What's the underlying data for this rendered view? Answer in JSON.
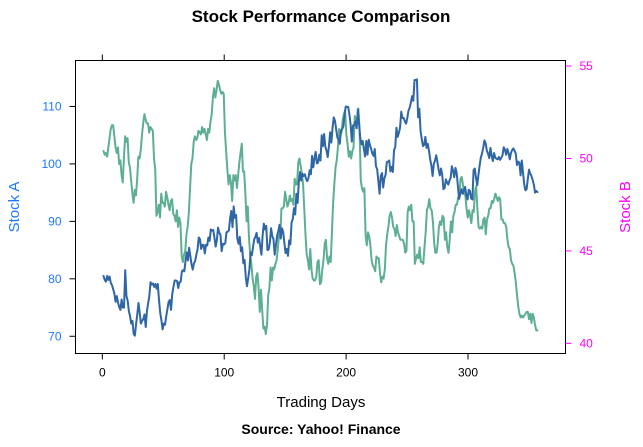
{
  "chart_data": {
    "type": "line",
    "title": "Stock Performance Comparison",
    "xlabel": "Trading Days",
    "caption": "Source: Yahoo! Finance",
    "x_range": [
      1,
      357
    ],
    "xlim": [
      -22,
      380
    ],
    "x_ticks": [
      0,
      100,
      200,
      300
    ],
    "grid": false,
    "colors": {
      "axis": "#000000",
      "left_axis": "#1E78FF",
      "right_axis": "#FF00FF"
    },
    "series": [
      {
        "ylabel": "Stock A",
        "axis": "left",
        "color": "#2E66A6",
        "ylim": [
          67,
          118
        ],
        "y_ticks": [
          70,
          80,
          90,
          100,
          110
        ],
        "values": [
          80.5,
          79.8,
          79.5,
          80.5,
          79.8,
          80.4,
          79.3,
          78.9,
          78.2,
          77.4,
          76.0,
          77.0,
          75.9,
          75.1,
          74.6,
          76.4,
          75.0,
          75.0,
          81.5,
          77.0,
          76.2,
          74.4,
          73.5,
          72.2,
          72.7,
          70.4,
          70.1,
          72.1,
          73.8,
          75.8,
          74.1,
          72.2,
          72.7,
          73.0,
          73.8,
          71.6,
          74.4,
          75.7,
          77.0,
          79.4,
          79.0,
          79.2,
          78.6,
          79.1,
          78.3,
          79.1,
          76.4,
          74.1,
          72.8,
          71.2,
          72.2,
          72.0,
          73.5,
          74.7,
          76.0,
          76.3,
          74.6,
          77.3,
          78.6,
          79.7,
          79.7,
          79.6,
          78.4,
          79.4,
          79.5,
          81.3,
          81.5,
          81.3,
          83.1,
          84.6,
          83.2,
          85.4,
          84.0,
          82.5,
          81.6,
          82.7,
          83.1,
          84.2,
          85.1,
          87.2,
          86.9,
          85.2,
          85.9,
          85.9,
          84.4,
          85.9,
          85.8,
          87.2,
          86.6,
          88.6,
          88.4,
          88.5,
          87.2,
          85.6,
          86.7,
          88.9,
          88.0,
          87.7,
          84.8,
          86.1,
          86.0,
          86.2,
          88.1,
          88.2,
          88.4,
          90.5,
          91.8,
          89.0,
          92.6,
          90.6,
          91.1,
          87.0,
          86.1,
          87.3,
          84.8,
          85.5,
          82.7,
          83.3,
          80.3,
          78.7,
          80.1,
          81.6,
          84.6,
          84.1,
          85.5,
          86.9,
          87.3,
          88.0,
          86.3,
          87.1,
          85.6,
          84.2,
          87.6,
          89.6,
          88.6,
          89.2,
          85.0,
          85.1,
          86.3,
          88.8,
          87.4,
          86.9,
          84.2,
          85.8,
          87.5,
          88.3,
          89.4,
          87.0,
          88.8,
          88.2,
          86.3,
          84.5,
          85.2,
          84.0,
          86.7,
          86.0,
          89.8,
          90.4,
          92.3,
          91.2,
          94.8,
          93.2,
          96.8,
          98.6,
          97.1,
          98.3,
          97.9,
          98.2,
          97.4,
          97.0,
          97.5,
          98.9,
          98.2,
          101.4,
          99.4,
          101.0,
          102.1,
          100.1,
          100.2,
          101.6,
          100.6,
          105.0,
          103.1,
          105.2,
          103.0,
          102.3,
          101.2,
          103.1,
          105.5,
          103.7,
          106.3,
          108.1,
          107.5,
          106.0,
          104.6,
          104.2,
          103.5,
          105.8,
          106.1,
          106.5,
          108.7,
          110.0,
          109.9,
          109.9,
          108.6,
          106.8,
          103.9,
          106.7,
          106.8,
          107.4,
          106.2,
          109.5,
          106.9,
          104.5,
          103.4,
          104.0,
          102.6,
          101.3,
          104.0,
          101.6,
          104.2,
          103.3,
          102.6,
          101.8,
          101.4,
          102.6,
          99.6,
          99.1,
          97.0,
          94.8,
          97.9,
          98.4,
          95.9,
          97.5,
          98.1,
          100.3,
          100.4,
          100.6,
          98.7,
          99.5,
          98.6,
          102.4,
          102.9,
          106.3,
          104.7,
          105.4,
          106.3,
          109.1,
          108.0,
          108.0,
          107.4,
          107.0,
          108.0,
          109.3,
          109.8,
          110.7,
          111.8,
          111.0,
          114.6,
          114.6,
          114.7,
          108.1,
          109.6,
          105.8,
          104.3,
          103.1,
          103.3,
          104.7,
          102.8,
          103.5,
          102.3,
          100.8,
          99.7,
          97.9,
          100.0,
          100.6,
          101.5,
          100.3,
          99.0,
          98.0,
          99.2,
          98.1,
          95.6,
          95.8,
          97.3,
          96.8,
          96.4,
          97.1,
          97.6,
          99.6,
          98.8,
          97.7,
          99.3,
          98.4,
          96.1,
          93.9,
          94.8,
          95.6,
          94.8,
          95.4,
          96.0,
          94.5,
          93.8,
          95.5,
          95.3,
          94.0,
          93.8,
          98.9,
          99.2,
          97.6,
          96.3,
          98.0,
          99.7,
          101.1,
          101.8,
          102.8,
          104.1,
          103.6,
          102.3,
          101.8,
          101.0,
          102.8,
          101.4,
          100.5,
          101.9,
          101.1,
          100.9,
          100.8,
          101.2,
          100.7,
          101.1,
          101.5,
          102.9,
          102.5,
          101.6,
          102.6,
          101.9,
          100.8,
          101.9,
          102.4,
          102.7,
          102.3,
          101.8,
          99.8,
          100.4,
          100.2,
          98.0,
          100.6,
          98.5,
          96.5,
          95.4,
          95.6,
          97.4,
          99.0,
          98.3,
          97.9,
          97.2,
          96.4,
          95.0,
          95.3,
          95.1
        ]
      },
      {
        "ylabel": "Stock B",
        "axis": "right",
        "color": "#5DAF92",
        "ylim": [
          39.45,
          55.3
        ],
        "y_ticks": [
          40,
          45,
          50,
          55
        ],
        "values": [
          50.4,
          50.2,
          50.3,
          50.1,
          50.6,
          51.1,
          51.6,
          51.8,
          51.8,
          51.2,
          50.6,
          50.3,
          50.6,
          49.7,
          49.9,
          49.1,
          48.7,
          50.1,
          51.2,
          50.9,
          51.1,
          49.8,
          49.5,
          48.8,
          48.1,
          47.6,
          48.3,
          48.0,
          48.9,
          50.1,
          50.0,
          50.5,
          51.3,
          51.9,
          52.4,
          52.1,
          51.9,
          51.9,
          51.4,
          51.7,
          51.6,
          51.5,
          50.0,
          49.4,
          46.9,
          47.1,
          47.5,
          46.8,
          48.1,
          47.6,
          47.6,
          47.4,
          48.2,
          47.9,
          47.5,
          47.2,
          47.7,
          47.8,
          47.0,
          46.9,
          46.6,
          47.2,
          46.3,
          46.8,
          46.5,
          44.7,
          44.4,
          44.8,
          45.0,
          45.9,
          46.3,
          47.1,
          48.4,
          49.7,
          50.0,
          50.9,
          51.2,
          51.0,
          51.1,
          51.5,
          51.4,
          51.3,
          51.7,
          51.4,
          51.6,
          51.3,
          51.0,
          51.6,
          51.4,
          52.0,
          52.4,
          53.3,
          53.8,
          53.3,
          53.7,
          54.2,
          54.0,
          53.7,
          53.5,
          53.6,
          53.5,
          51.4,
          50.4,
          49.4,
          48.6,
          49.1,
          48.7,
          47.7,
          49.1,
          48.8,
          49.1,
          48.4,
          49.1,
          49.8,
          50.3,
          50.8,
          49.3,
          49.3,
          48.1,
          46.6,
          47.4,
          45.7,
          44.8,
          44.3,
          43.5,
          43.1,
          42.4,
          43.6,
          43.8,
          43.0,
          41.7,
          42.9,
          41.8,
          40.8,
          40.9,
          40.5,
          41.0,
          42.6,
          43.0,
          44.1,
          43.4,
          44.1,
          44.0,
          44.3,
          44.5,
          45.1,
          45.9,
          45.7,
          47.3,
          47.3,
          47.4,
          48.2,
          47.8,
          47.4,
          47.6,
          48.0,
          47.7,
          47.8,
          47.5,
          48.9,
          48.6,
          48.6,
          49.8,
          50.0,
          49.6,
          49.2,
          48.6,
          47.3,
          45.9,
          44.8,
          44.5,
          44.0,
          45.1,
          44.0,
          43.5,
          43.4,
          43.4,
          43.6,
          44.4,
          44.5,
          43.2,
          43.3,
          44.0,
          44.5,
          45.4,
          45.6,
          44.6,
          44.3,
          44.7,
          44.4,
          46.0,
          47.6,
          48.6,
          49.5,
          49.9,
          50.6,
          51.6,
          51.3,
          51.4,
          52.1,
          52.4,
          52.6,
          51.3,
          50.8,
          50.1,
          50.4,
          50.0,
          50.4,
          50.6,
          52.3,
          52.1,
          52.1,
          52.7,
          51.6,
          48.8,
          48.4,
          48.2,
          48.4,
          45.9,
          45.3,
          46.0,
          45.8,
          45.3,
          44.5,
          44.2,
          44.1,
          43.9,
          44.7,
          44.6,
          44.6,
          43.8,
          43.3,
          43.6,
          43.5,
          44.0,
          45.3,
          45.9,
          46.3,
          46.9,
          47.1,
          46.8,
          46.3,
          46.2,
          45.8,
          46.4,
          46.0,
          45.8,
          45.6,
          45.6,
          45.6,
          45.4,
          44.9,
          45.0,
          47.1,
          47.4,
          47.2,
          47.5,
          46.6,
          46.6,
          44.3,
          44.6,
          44.8,
          44.6,
          45.2,
          44.4,
          44.4,
          44.3,
          45.2,
          46.0,
          47.2,
          47.4,
          47.8,
          47.3,
          47.2,
          46.6,
          45.5,
          44.9,
          44.9,
          45.4,
          46.3,
          46.6,
          46.4,
          46.9,
          46.8,
          45.6,
          46.0,
          45.2,
          44.9,
          45.6,
          46.6,
          46.0,
          46.9,
          47.1,
          47.5,
          47.5,
          47.9,
          48.0,
          48.9,
          49.0,
          48.6,
          48.1,
          48.0,
          47.3,
          46.8,
          47.2,
          46.9,
          46.5,
          47.2,
          47.1,
          48.2,
          48.5,
          47.3,
          46.3,
          46.2,
          46.3,
          46.2,
          46.7,
          46.8,
          45.9,
          46.7,
          46.9,
          47.3,
          47.3,
          47.7,
          47.6,
          47.8,
          48.1,
          47.9,
          47.7,
          47.9,
          47.8,
          46.7,
          46.7,
          46.5,
          46.5,
          46.3,
          45.6,
          45.2,
          45.1,
          44.5,
          44.3,
          44.2,
          43.8,
          43.3,
          42.6,
          42.0,
          41.6,
          41.4,
          41.5,
          41.4,
          41.5,
          41.6,
          41.7,
          41.7,
          41.3,
          41.6,
          41.1,
          41.6,
          41.4,
          41.0,
          40.7,
          40.7
        ]
      }
    ]
  }
}
